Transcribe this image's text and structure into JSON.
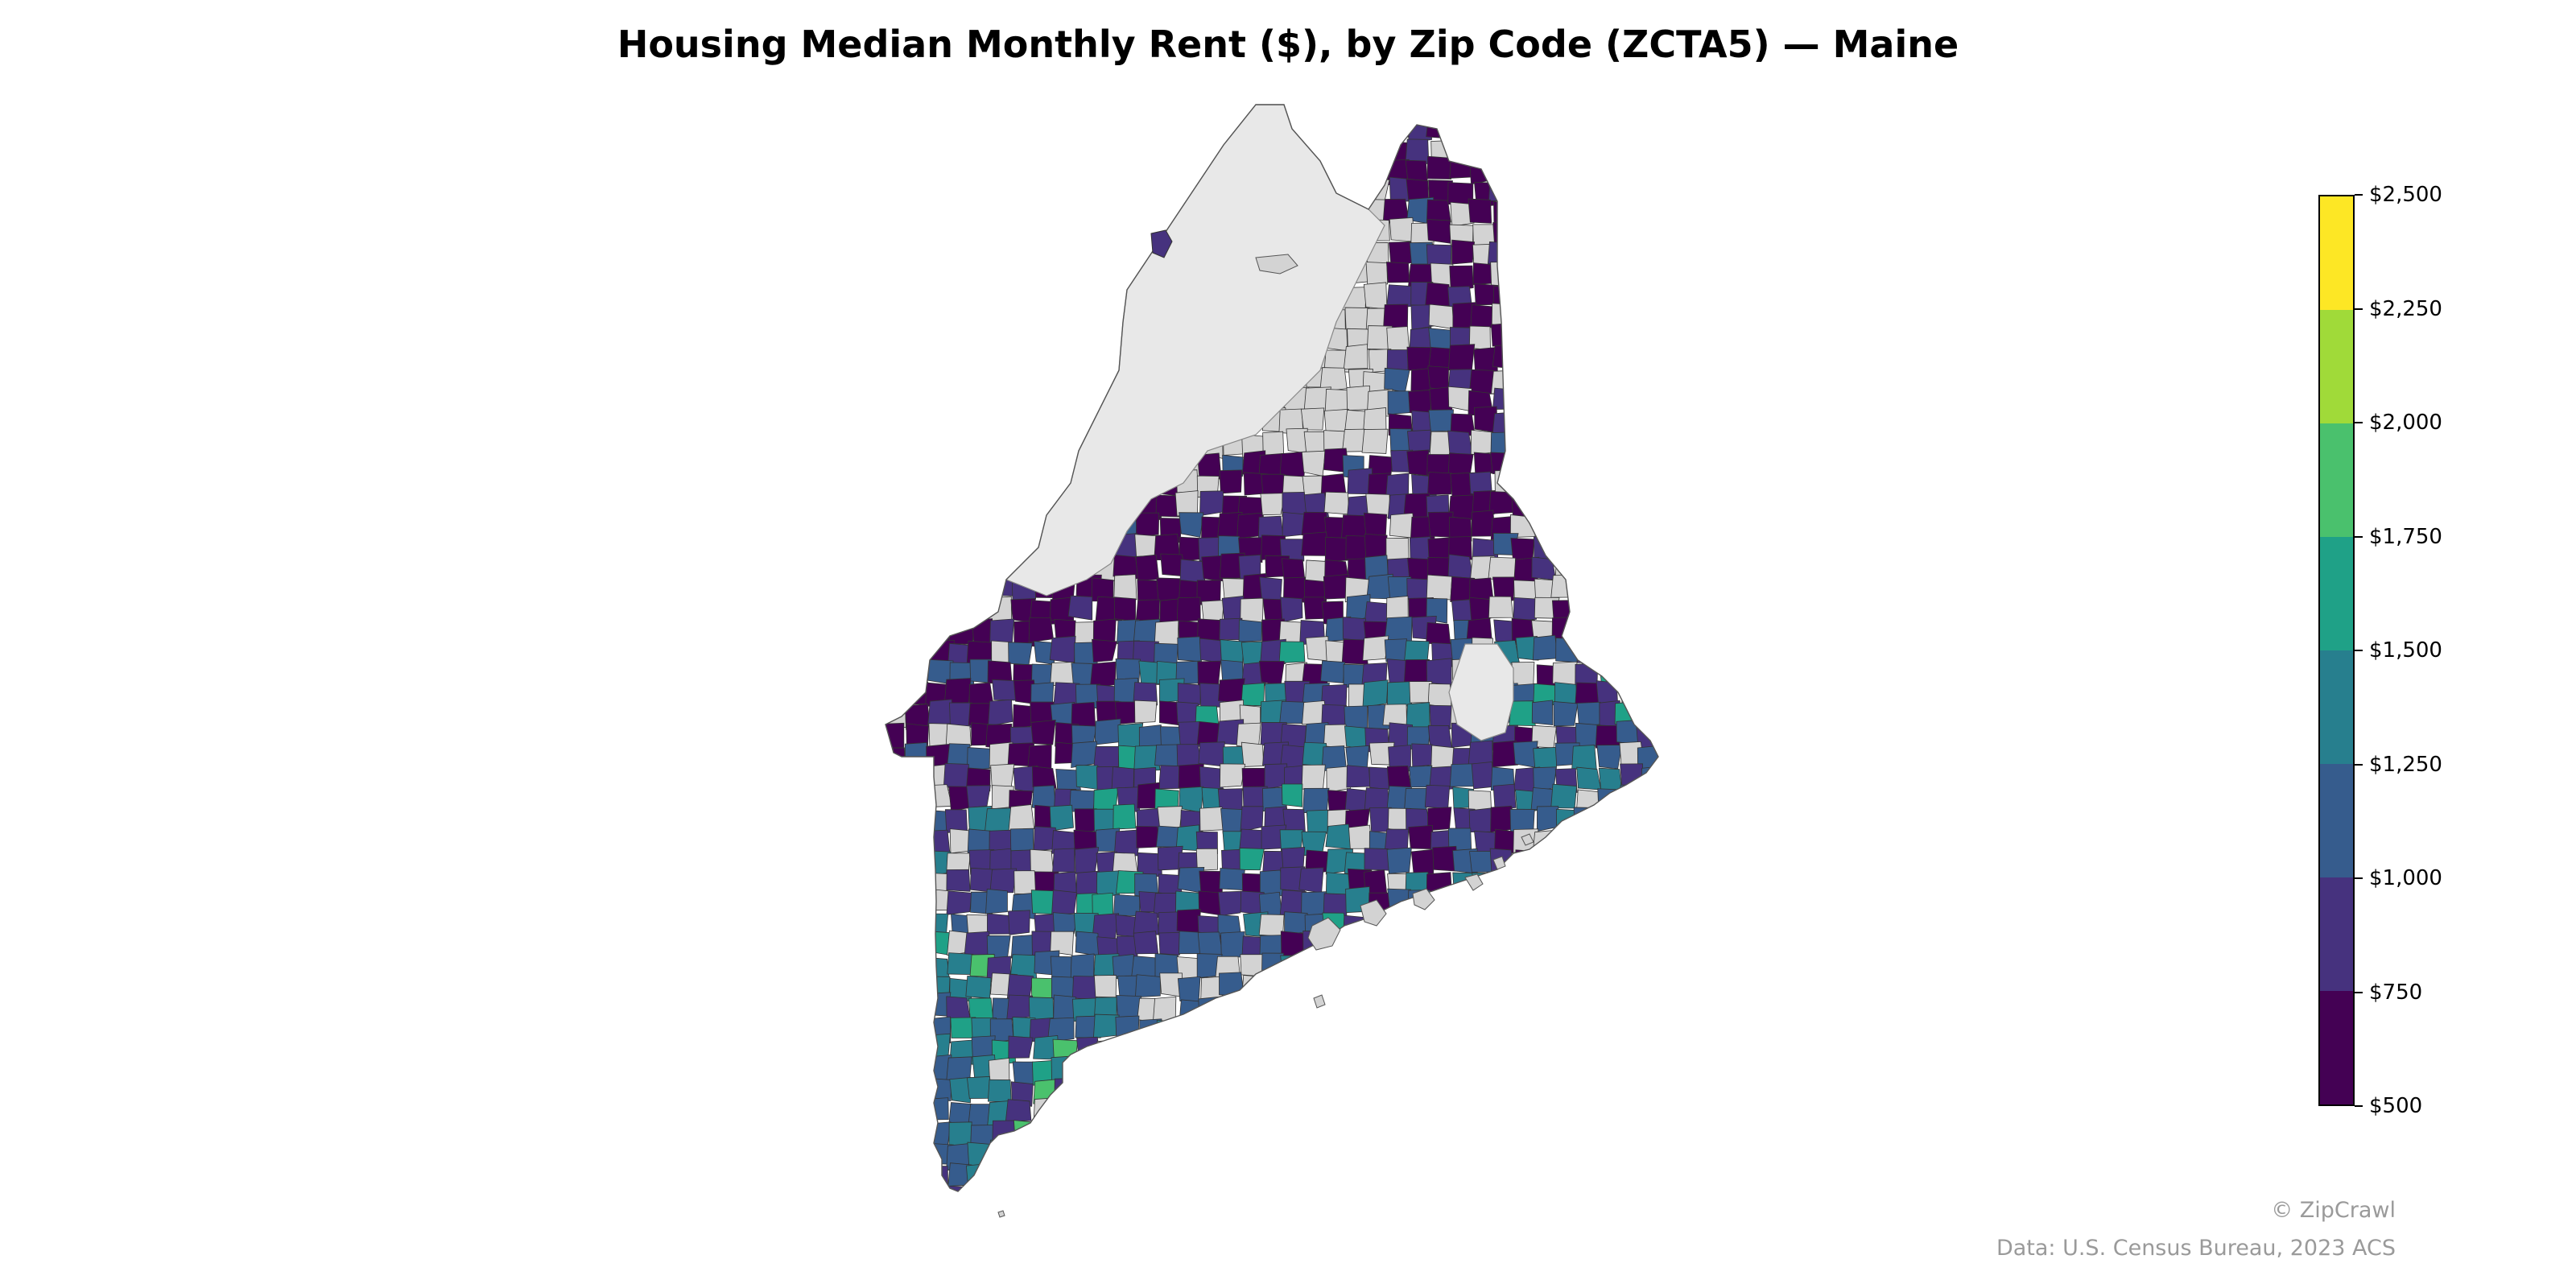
{
  "title": "Housing Median Monthly Rent ($), by Zip Code (ZCTA5) — Maine",
  "legend": {
    "labels": [
      "$500",
      "$750",
      "$1,000",
      "$1,250",
      "$1,500",
      "$1,750",
      "$2,000",
      "$2,250",
      "$2,500"
    ],
    "bins": [
      {
        "min": 500,
        "max": 750,
        "color": "#440154"
      },
      {
        "min": 750,
        "max": 1000,
        "color": "#46327e"
      },
      {
        "min": 1000,
        "max": 1250,
        "color": "#365c8d"
      },
      {
        "min": 1250,
        "max": 1500,
        "color": "#277f8e"
      },
      {
        "min": 1500,
        "max": 1750,
        "color": "#1fa187"
      },
      {
        "min": 1750,
        "max": 2000,
        "color": "#4ac16d"
      },
      {
        "min": 2000,
        "max": 2250,
        "color": "#a0da39"
      },
      {
        "min": 2250,
        "max": 2500,
        "color": "#fde725"
      }
    ]
  },
  "no_data_color": "#d3d3d3",
  "outside_color": "#e8e8e8",
  "credits": {
    "copyright": "© ZipCrawl",
    "source": "Data: U.S. Census Bureau, 2023 ACS"
  }
}
